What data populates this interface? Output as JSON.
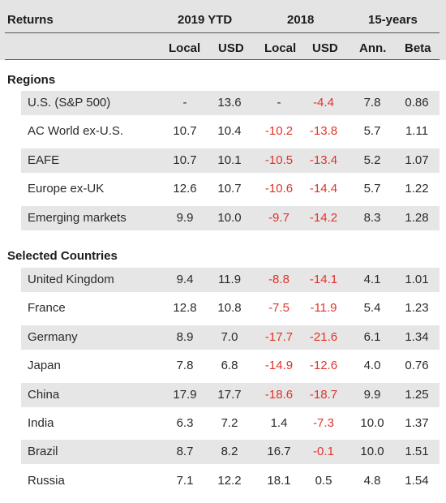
{
  "header": {
    "returns": "Returns",
    "group_2019": "2019 YTD",
    "group_2018": "2018",
    "group_15y": "15-years",
    "col_local_2019": "Local",
    "col_usd_2019": "USD",
    "col_local_2018": "Local",
    "col_usd_2018": "USD",
    "col_ann": "Ann.",
    "col_beta": "Beta"
  },
  "sections": [
    {
      "title": "Regions",
      "rows": [
        {
          "name": "U.S. (S&P 500)",
          "l2019": "-",
          "u2019": "13.6",
          "l2018": "-",
          "u2018": "-4.4",
          "ann": "7.8",
          "beta": "0.86"
        },
        {
          "name": "AC World ex-U.S.",
          "l2019": "10.7",
          "u2019": "10.4",
          "l2018": "-10.2",
          "u2018": "-13.8",
          "ann": "5.7",
          "beta": "1.11"
        },
        {
          "name": "EAFE",
          "l2019": "10.7",
          "u2019": "10.1",
          "l2018": "-10.5",
          "u2018": "-13.4",
          "ann": "5.2",
          "beta": "1.07"
        },
        {
          "name": "Europe ex-UK",
          "l2019": "12.6",
          "u2019": "10.7",
          "l2018": "-10.6",
          "u2018": "-14.4",
          "ann": "5.7",
          "beta": "1.22"
        },
        {
          "name": "Emerging markets",
          "l2019": "9.9",
          "u2019": "10.0",
          "l2018": "-9.7",
          "u2018": "-14.2",
          "ann": "8.3",
          "beta": "1.28"
        }
      ]
    },
    {
      "title": "Selected Countries",
      "rows": [
        {
          "name": "United Kingdom",
          "l2019": "9.4",
          "u2019": "11.9",
          "l2018": "-8.8",
          "u2018": "-14.1",
          "ann": "4.1",
          "beta": "1.01"
        },
        {
          "name": "France",
          "l2019": "12.8",
          "u2019": "10.8",
          "l2018": "-7.5",
          "u2018": "-11.9",
          "ann": "5.4",
          "beta": "1.23"
        },
        {
          "name": "Germany",
          "l2019": "8.9",
          "u2019": "7.0",
          "l2018": "-17.7",
          "u2018": "-21.6",
          "ann": "6.1",
          "beta": "1.34"
        },
        {
          "name": "Japan",
          "l2019": "7.8",
          "u2019": "6.8",
          "l2018": "-14.9",
          "u2018": "-12.6",
          "ann": "4.0",
          "beta": "0.76"
        },
        {
          "name": "China",
          "l2019": "17.9",
          "u2019": "17.7",
          "l2018": "-18.6",
          "u2018": "-18.7",
          "ann": "9.9",
          "beta": "1.25"
        },
        {
          "name": "India",
          "l2019": "6.3",
          "u2019": "7.2",
          "l2018": "1.4",
          "u2018": "-7.3",
          "ann": "10.0",
          "beta": "1.37"
        },
        {
          "name": "Brazil",
          "l2019": "8.7",
          "u2019": "8.2",
          "l2018": "16.7",
          "u2018": "-0.1",
          "ann": "10.0",
          "beta": "1.51"
        },
        {
          "name": "Russia",
          "l2019": "7.1",
          "u2019": "12.2",
          "l2018": "18.1",
          "u2018": "0.5",
          "ann": "4.8",
          "beta": "1.54"
        }
      ]
    }
  ],
  "colors": {
    "negative": "#e0342b",
    "shade": "#e6e6e6",
    "header_band": "#e4e4e4"
  },
  "chart_data": {
    "type": "table",
    "columns": [
      "Local",
      "USD",
      "Local",
      "USD",
      "Ann.",
      "Beta"
    ],
    "column_groups": [
      "2019 YTD",
      "2018",
      "15-years"
    ],
    "rows": [
      {
        "name": "U.S. (S&P 500)",
        "values": [
          null,
          13.6,
          null,
          -4.4,
          7.8,
          0.86
        ]
      },
      {
        "name": "AC World ex-U.S.",
        "values": [
          10.7,
          10.4,
          -10.2,
          -13.8,
          5.7,
          1.11
        ]
      },
      {
        "name": "EAFE",
        "values": [
          10.7,
          10.1,
          -10.5,
          -13.4,
          5.2,
          1.07
        ]
      },
      {
        "name": "Europe ex-UK",
        "values": [
          12.6,
          10.7,
          -10.6,
          -14.4,
          5.7,
          1.22
        ]
      },
      {
        "name": "Emerging markets",
        "values": [
          9.9,
          10.0,
          -9.7,
          -14.2,
          8.3,
          1.28
        ]
      },
      {
        "name": "United Kingdom",
        "values": [
          9.4,
          11.9,
          -8.8,
          -14.1,
          4.1,
          1.01
        ]
      },
      {
        "name": "France",
        "values": [
          12.8,
          10.8,
          -7.5,
          -11.9,
          5.4,
          1.23
        ]
      },
      {
        "name": "Germany",
        "values": [
          8.9,
          7.0,
          -17.7,
          -21.6,
          6.1,
          1.34
        ]
      },
      {
        "name": "Japan",
        "values": [
          7.8,
          6.8,
          -14.9,
          -12.6,
          4.0,
          0.76
        ]
      },
      {
        "name": "China",
        "values": [
          17.9,
          17.7,
          -18.6,
          -18.7,
          9.9,
          1.25
        ]
      },
      {
        "name": "India",
        "values": [
          6.3,
          7.2,
          1.4,
          -7.3,
          10.0,
          1.37
        ]
      },
      {
        "name": "Brazil",
        "values": [
          8.7,
          8.2,
          16.7,
          -0.1,
          10.0,
          1.51
        ]
      },
      {
        "name": "Russia",
        "values": [
          7.1,
          12.2,
          18.1,
          0.5,
          4.8,
          1.54
        ]
      }
    ]
  }
}
